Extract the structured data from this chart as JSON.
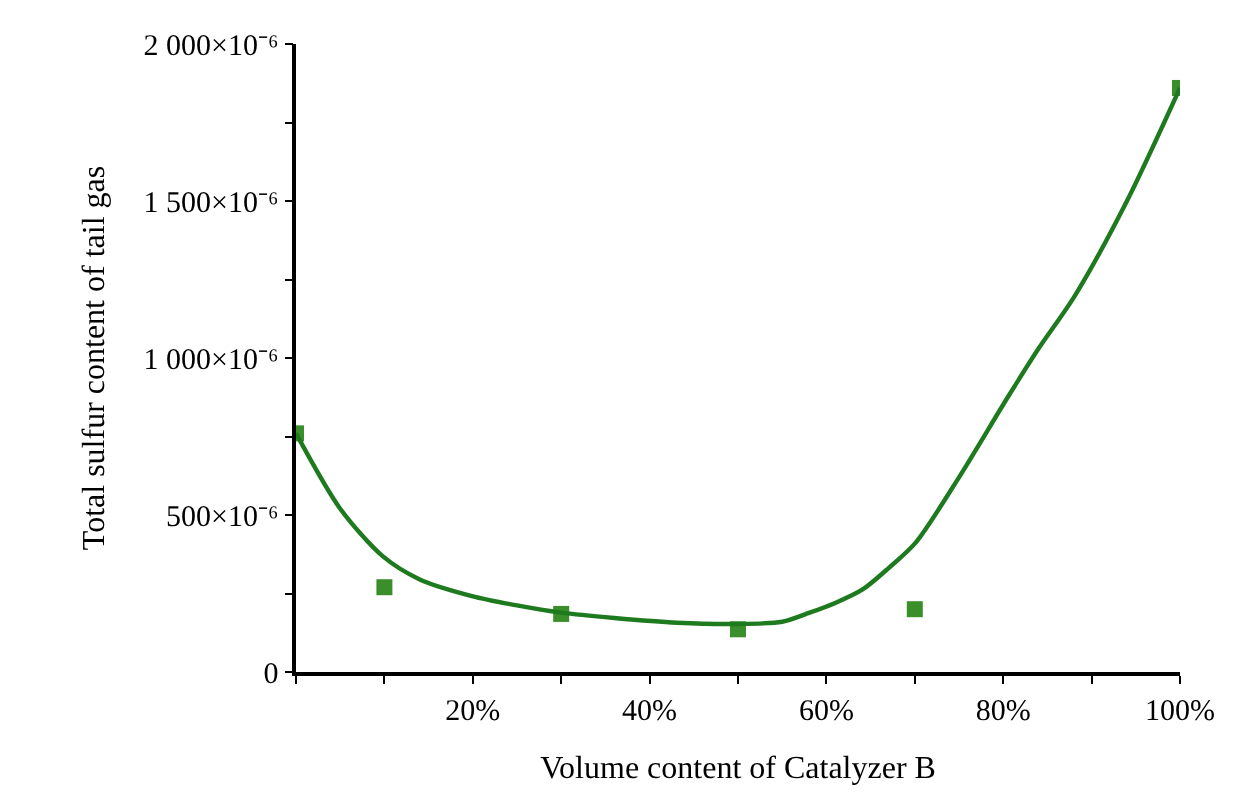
{
  "chart_data": {
    "type": "scatter",
    "xlabel": "Volume content of Catalyzer B",
    "ylabel": "Total sulfur content of tail gas",
    "marker": "square",
    "series": [
      {
        "color": "#3a8f2a",
        "x": [
          0,
          10,
          30,
          50,
          70,
          100
        ],
        "values": [
          0.00076,
          0.00027,
          0.000185,
          0.000136,
          0.0002,
          0.00186
        ]
      },
      {
        "type": "line",
        "color": "#1e7a1e",
        "marker": "none",
        "line_style": "solid",
        "x": [
          0,
          5,
          9.8,
          14,
          19.9,
          25,
          30,
          36,
          43.1,
          49.9,
          55,
          58.1,
          61,
          64.1,
          67,
          70.1,
          75,
          80.6,
          84,
          88.1,
          94,
          100
        ],
        "values": [
          0.00076,
          0.00052,
          0.000369,
          0.000295,
          0.000242,
          0.000212,
          0.000189,
          0.000172,
          0.000157,
          0.000153,
          0.00016,
          0.000189,
          0.00022,
          0.000263,
          0.00033,
          0.000412,
          0.00062,
          0.000879,
          0.00103,
          0.001198,
          0.0015,
          0.00186
        ]
      }
    ],
    "xlim": [
      0,
      100
    ],
    "xticks": [
      {
        "value": 0,
        "label": null
      },
      {
        "value": 10,
        "label": null
      },
      {
        "value": 20,
        "label": "20%"
      },
      {
        "value": 30,
        "label": null
      },
      {
        "value": 40,
        "label": "40%"
      },
      {
        "value": 50,
        "label": null
      },
      {
        "value": 60,
        "label": "60%"
      },
      {
        "value": 70,
        "label": null
      },
      {
        "value": 80,
        "label": "80%"
      },
      {
        "value": 90,
        "label": null
      },
      {
        "value": 100,
        "label": "100%"
      }
    ],
    "ylim": [
      0,
      0.002
    ],
    "yticks": [
      {
        "value": 0,
        "label": "0"
      },
      {
        "value": 0.00025,
        "label": null
      },
      {
        "value": 0.0005,
        "label": "500×10⁻⁶"
      },
      {
        "value": 0.00075,
        "label": null
      },
      {
        "value": 0.001,
        "label": "1 000×10⁻⁶"
      },
      {
        "value": 0.00125,
        "label": null
      },
      {
        "value": 0.0015,
        "label": "1 500×10⁻⁶"
      },
      {
        "value": 0.00175,
        "label": null
      },
      {
        "value": 0.002,
        "label": "2 000×10⁻⁶"
      }
    ]
  }
}
